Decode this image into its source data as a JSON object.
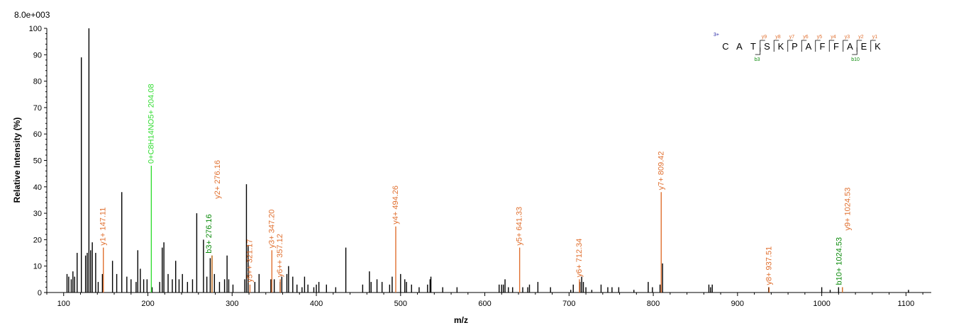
{
  "chart_data": {
    "type": "bar",
    "max_intensity_label": "8.0e+003",
    "xlabel": "m/z",
    "ylabel": "Relative   Intensity (%)",
    "xlim": [
      80,
      1130
    ],
    "ylim": [
      0,
      100
    ],
    "x_ticks": [
      "100",
      "200",
      "300",
      "400",
      "500",
      "600",
      "700",
      "800",
      "900",
      "1000",
      "1100"
    ],
    "y_ticks": [
      "0",
      "10",
      "20",
      "30",
      "40",
      "50",
      "60",
      "70",
      "80",
      "90",
      "100"
    ],
    "grid": false,
    "colors": {
      "unmatched": "#000000",
      "y_ion": "#e07030",
      "b_ion": "#0a8a0a",
      "immonium": "#33dd33",
      "charge": "#1a1aa0"
    },
    "unmatched_peaks": [
      [
        104,
        7
      ],
      [
        106,
        6
      ],
      [
        109,
        5
      ],
      [
        111,
        8
      ],
      [
        113,
        6
      ],
      [
        116,
        15
      ],
      [
        121,
        89
      ],
      [
        126,
        14
      ],
      [
        128,
        15
      ],
      [
        130,
        100
      ],
      [
        132,
        16
      ],
      [
        134,
        19
      ],
      [
        138,
        15
      ],
      [
        141,
        4
      ],
      [
        146,
        7
      ],
      [
        158,
        12
      ],
      [
        163,
        7
      ],
      [
        169,
        38
      ],
      [
        175,
        6
      ],
      [
        180,
        5
      ],
      [
        186,
        4
      ],
      [
        188,
        16
      ],
      [
        191,
        9
      ],
      [
        195,
        5
      ],
      [
        199,
        5
      ],
      [
        205,
        2
      ],
      [
        214,
        4
      ],
      [
        217,
        17
      ],
      [
        219,
        19
      ],
      [
        224,
        7
      ],
      [
        229,
        5
      ],
      [
        233,
        12
      ],
      [
        237,
        5
      ],
      [
        241,
        7
      ],
      [
        247,
        4
      ],
      [
        253,
        5
      ],
      [
        258,
        30
      ],
      [
        266,
        20
      ],
      [
        270,
        6
      ],
      [
        274,
        13
      ],
      [
        279,
        7
      ],
      [
        285,
        4
      ],
      [
        291,
        5
      ],
      [
        294,
        14
      ],
      [
        296,
        5
      ],
      [
        301,
        3
      ],
      [
        315,
        5
      ],
      [
        317,
        41
      ],
      [
        319,
        18
      ],
      [
        327,
        4
      ],
      [
        332,
        7
      ],
      [
        346,
        5
      ],
      [
        350,
        5
      ],
      [
        357,
        4
      ],
      [
        359,
        6
      ],
      [
        365,
        7
      ],
      [
        367,
        10
      ],
      [
        372,
        6
      ],
      [
        377,
        3
      ],
      [
        383,
        2
      ],
      [
        386,
        6
      ],
      [
        390,
        3
      ],
      [
        397,
        2
      ],
      [
        400,
        3
      ],
      [
        403,
        4
      ],
      [
        412,
        3
      ],
      [
        423,
        2
      ],
      [
        435,
        17
      ],
      [
        455,
        3
      ],
      [
        463,
        8
      ],
      [
        465,
        4
      ],
      [
        472,
        5
      ],
      [
        478,
        4
      ],
      [
        487,
        3
      ],
      [
        490,
        6
      ],
      [
        500,
        7
      ],
      [
        505,
        5
      ],
      [
        507,
        4
      ],
      [
        513,
        3
      ],
      [
        522,
        2
      ],
      [
        532,
        3
      ],
      [
        535,
        5
      ],
      [
        536,
        6
      ],
      [
        550,
        2
      ],
      [
        567,
        2
      ],
      [
        617,
        3
      ],
      [
        620,
        3
      ],
      [
        622,
        3
      ],
      [
        624,
        5
      ],
      [
        628,
        2
      ],
      [
        633,
        2
      ],
      [
        645,
        2
      ],
      [
        651,
        2
      ],
      [
        653,
        3
      ],
      [
        663,
        4
      ],
      [
        678,
        2
      ],
      [
        702,
        1
      ],
      [
        705,
        3
      ],
      [
        713,
        4
      ],
      [
        715,
        6
      ],
      [
        717,
        4
      ],
      [
        720,
        2
      ],
      [
        727,
        1
      ],
      [
        738,
        3
      ],
      [
        746,
        2
      ],
      [
        751,
        2
      ],
      [
        759,
        2
      ],
      [
        777,
        1
      ],
      [
        794,
        4
      ],
      [
        799,
        2
      ],
      [
        808,
        3
      ],
      [
        811,
        11
      ],
      [
        866,
        3
      ],
      [
        868,
        2
      ],
      [
        870,
        3
      ],
      [
        937,
        2
      ],
      [
        1000,
        2
      ],
      [
        1010,
        1
      ],
      [
        1020,
        2
      ],
      [
        1103,
        1
      ]
    ],
    "annotated_peaks": [
      {
        "mz": 147.11,
        "intensity": 17,
        "label": "y1+ 147.11",
        "ion": "y"
      },
      {
        "mz": 204.08,
        "intensity": 48,
        "label": "0+C8H14NO5+ 204.08",
        "ion": "immonium"
      },
      {
        "mz": 276.16,
        "intensity": 14,
        "label": "b3+ 276.16",
        "ion": "b"
      },
      {
        "mz": 276.16,
        "intensity": 14,
        "label": "y2+ 276.16",
        "ion": "y"
      },
      {
        "mz": 321.17,
        "intensity": 3,
        "label": "y5++ 321.17",
        "ion": "y"
      },
      {
        "mz": 347.2,
        "intensity": 16,
        "label": "y3+ 347.20",
        "ion": "y"
      },
      {
        "mz": 357.12,
        "intensity": 5,
        "label": "y6++ 357.12",
        "ion": "y"
      },
      {
        "mz": 494.26,
        "intensity": 25,
        "label": "y4+ 494.26",
        "ion": "y"
      },
      {
        "mz": 641.33,
        "intensity": 17,
        "label": "y5+ 641.33",
        "ion": "y"
      },
      {
        "mz": 712.34,
        "intensity": 5,
        "label": "y6+ 712.34",
        "ion": "y"
      },
      {
        "mz": 809.42,
        "intensity": 38,
        "label": "y7+ 809.42",
        "ion": "y"
      },
      {
        "mz": 937.51,
        "intensity": 2,
        "label": "y8+ 937.51",
        "ion": "y"
      },
      {
        "mz": 1024.53,
        "intensity": 2,
        "label": "b10+ 1024.53",
        "ion": "b"
      },
      {
        "mz": 1024.53,
        "intensity": 2,
        "label": "y9+ 1024.53",
        "ion": "y"
      }
    ],
    "sequence": {
      "charge": "3+",
      "residues": [
        "C",
        "A",
        "T",
        "S",
        "K",
        "P",
        "A",
        "F",
        "F",
        "A",
        "E",
        "K"
      ],
      "y_ions": [
        "y9",
        "y8",
        "y7",
        "y6",
        "y5",
        "y4",
        "y3",
        "y2",
        "y1"
      ],
      "b_ions": [
        "b3",
        "b10"
      ]
    }
  }
}
